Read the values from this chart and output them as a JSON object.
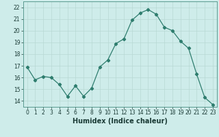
{
  "x": [
    0,
    1,
    2,
    3,
    4,
    5,
    6,
    7,
    8,
    9,
    10,
    11,
    12,
    13,
    14,
    15,
    16,
    17,
    18,
    19,
    20,
    21,
    22,
    23
  ],
  "y": [
    16.9,
    15.8,
    16.1,
    16.0,
    15.4,
    14.4,
    15.3,
    14.4,
    15.1,
    16.9,
    17.5,
    18.9,
    19.3,
    20.9,
    21.5,
    21.8,
    21.4,
    20.3,
    20.0,
    19.1,
    18.5,
    16.3,
    14.3,
    13.7
  ],
  "line_color": "#2e7d6e",
  "marker": "D",
  "marker_size": 2.2,
  "bg_color": "#ceecea",
  "grid_color": "#b8d8d4",
  "xlabel": "Humidex (Indice chaleur)",
  "ylim": [
    13.5,
    22.5
  ],
  "xlim": [
    -0.5,
    23.5
  ],
  "yticks": [
    14,
    15,
    16,
    17,
    18,
    19,
    20,
    21,
    22
  ],
  "xticks": [
    0,
    1,
    2,
    3,
    4,
    5,
    6,
    7,
    8,
    9,
    10,
    11,
    12,
    13,
    14,
    15,
    16,
    17,
    18,
    19,
    20,
    21,
    22,
    23
  ],
  "tick_fontsize": 5.5,
  "xlabel_fontsize": 7,
  "spine_color": "#5a9a90"
}
